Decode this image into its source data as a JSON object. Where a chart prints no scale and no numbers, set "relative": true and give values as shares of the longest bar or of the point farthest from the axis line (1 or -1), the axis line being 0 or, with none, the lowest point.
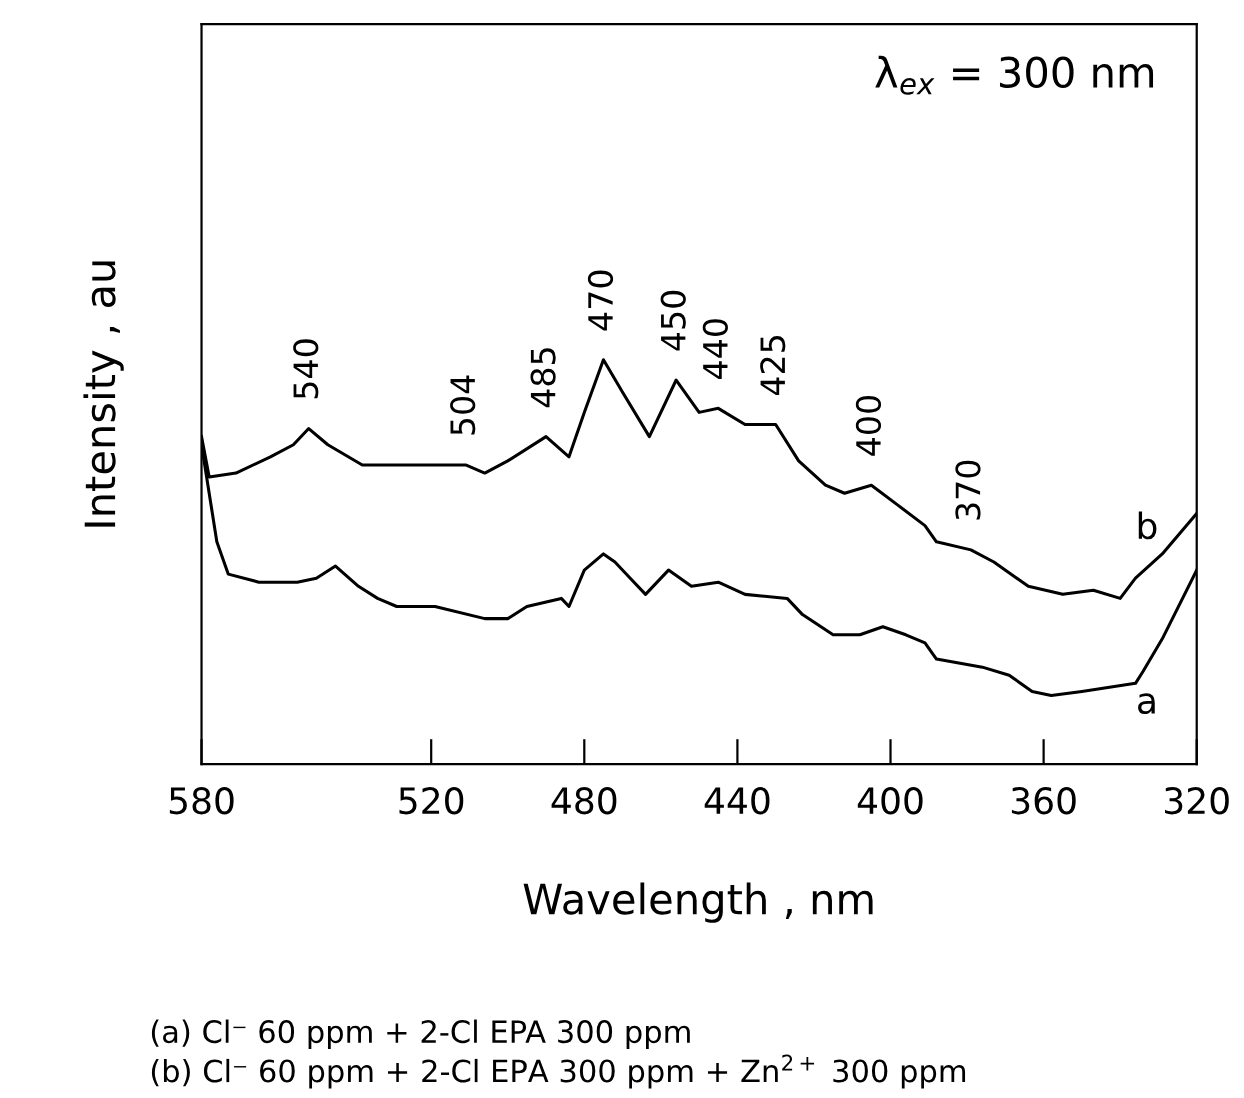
{
  "chart_data": {
    "type": "line",
    "relative": true,
    "xlabel": "Wavelength , nm",
    "ylabel": "Intensity , au",
    "xlim": [
      580,
      320
    ],
    "xticks": [
      580,
      520,
      480,
      440,
      400,
      360,
      320
    ],
    "grid": false,
    "legend": false,
    "marker": "none",
    "line_style": "solid",
    "series": [
      {
        "name": "b",
        "color": "#000000",
        "x": [
          580,
          578,
          571,
          562,
          556,
          552,
          547,
          538,
          526,
          511,
          506,
          500,
          490,
          484,
          480,
          475,
          470,
          463,
          456,
          450,
          445,
          438,
          430,
          424,
          417,
          412,
          405,
          398,
          391,
          388,
          379,
          373,
          364,
          355,
          347,
          340,
          336,
          329,
          320
        ],
        "values": [
          0.81,
          0.71,
          0.72,
          0.76,
          0.79,
          0.83,
          0.79,
          0.74,
          0.74,
          0.74,
          0.72,
          0.75,
          0.81,
          0.76,
          0.87,
          1.0,
          0.92,
          0.81,
          0.95,
          0.87,
          0.88,
          0.84,
          0.84,
          0.75,
          0.69,
          0.67,
          0.69,
          0.64,
          0.59,
          0.55,
          0.53,
          0.5,
          0.44,
          0.42,
          0.43,
          0.41,
          0.46,
          0.52,
          0.62
        ]
      },
      {
        "name": "a",
        "color": "#000000",
        "x": [
          580,
          576,
          573,
          565,
          555,
          550,
          545,
          539,
          534,
          529,
          519,
          506,
          500,
          495,
          486,
          484,
          480,
          475,
          472,
          468,
          464,
          458,
          452,
          445,
          438,
          427,
          423,
          415,
          408,
          402,
          396,
          391,
          388,
          376,
          369,
          363,
          358,
          350,
          336,
          334,
          329,
          320
        ],
        "values": [
          0.79,
          0.55,
          0.47,
          0.45,
          0.45,
          0.46,
          0.49,
          0.44,
          0.41,
          0.39,
          0.39,
          0.36,
          0.36,
          0.39,
          0.41,
          0.39,
          0.48,
          0.52,
          0.5,
          0.46,
          0.42,
          0.48,
          0.44,
          0.45,
          0.42,
          0.41,
          0.37,
          0.32,
          0.32,
          0.34,
          0.32,
          0.3,
          0.26,
          0.24,
          0.22,
          0.18,
          0.17,
          0.18,
          0.2,
          0.23,
          0.31,
          0.48
        ]
      }
    ],
    "annotations": [
      {
        "text": "540",
        "x": 552,
        "y": 0.83
      },
      {
        "text": "504",
        "x": 511,
        "y": 0.74
      },
      {
        "text": "485",
        "x": 490,
        "y": 0.81
      },
      {
        "text": "470",
        "x": 475,
        "y": 1.0
      },
      {
        "text": "450",
        "x": 456,
        "y": 0.95
      },
      {
        "text": "440",
        "x": 445,
        "y": 0.88
      },
      {
        "text": "425",
        "x": 430,
        "y": 0.84
      },
      {
        "text": "400",
        "x": 405,
        "y": 0.69
      },
      {
        "text": "370",
        "x": 379,
        "y": 0.53
      },
      "λ$_{ex}$ = 300 nm",
      "(a) Cl⁻ 60 ppm + 2-Cl EPA 300 ppm",
      "(b) Cl⁻ 60 ppm + 2-Cl EPA 300 ppm + Zn$^{2+}$ 300 ppm"
    ]
  }
}
